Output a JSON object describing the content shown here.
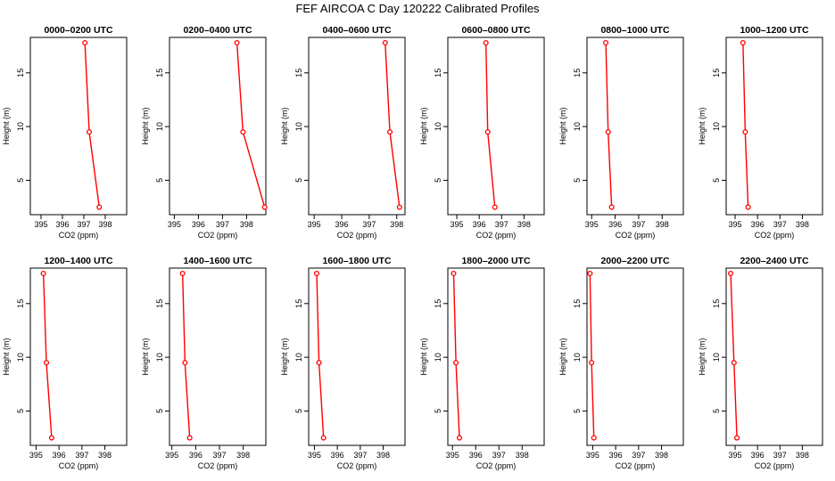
{
  "figure": {
    "title": "FEF AIRCOA C  Day 120222  Calibrated Profiles"
  },
  "colors": {
    "series": "#ff0000",
    "axis": "#000000",
    "background": "#ffffff"
  },
  "chart_data": [
    {
      "type": "line",
      "title": "0000–0200 UTC",
      "xlabel": "CO2 (ppm)",
      "ylabel": "Height (m)",
      "xlim": [
        394.5,
        399
      ],
      "ylim": [
        1.8,
        18.3
      ],
      "xticks": [
        395,
        396,
        397,
        398
      ],
      "yticks": [
        5,
        10,
        15
      ],
      "grid": false,
      "x": [
        397.72,
        397.25,
        397.05
      ],
      "y": [
        2.5,
        9.5,
        17.8
      ]
    },
    {
      "type": "line",
      "title": "0200–0400 UTC",
      "xlabel": "CO2 (ppm)",
      "ylabel": "Height (m)",
      "xlim": [
        394.8,
        398.8
      ],
      "ylim": [
        1.8,
        18.3
      ],
      "xticks": [
        395,
        396,
        397,
        398
      ],
      "yticks": [
        5,
        10,
        15
      ],
      "grid": false,
      "x": [
        398.75,
        397.85,
        397.6
      ],
      "y": [
        2.5,
        9.5,
        17.8
      ]
    },
    {
      "type": "line",
      "title": "0400–0600 UTC",
      "xlabel": "CO2 (ppm)",
      "ylabel": "Height (m)",
      "xlim": [
        394.8,
        398.3
      ],
      "ylim": [
        1.8,
        18.3
      ],
      "xticks": [
        395,
        396,
        397,
        398
      ],
      "yticks": [
        5,
        10,
        15
      ],
      "grid": false,
      "x": [
        398.1,
        397.75,
        397.58
      ],
      "y": [
        2.5,
        9.5,
        17.8
      ]
    },
    {
      "type": "line",
      "title": "0600–0800 UTC",
      "xlabel": "CO2 (ppm)",
      "ylabel": "Height (m)",
      "xlim": [
        394.6,
        398.9
      ],
      "ylim": [
        1.8,
        18.3
      ],
      "xticks": [
        395,
        396,
        397,
        398
      ],
      "yticks": [
        5,
        10,
        15
      ],
      "grid": false,
      "x": [
        396.7,
        396.38,
        396.3
      ],
      "y": [
        2.5,
        9.5,
        17.8
      ]
    },
    {
      "type": "line",
      "title": "0800–1000 UTC",
      "xlabel": "CO2 (ppm)",
      "ylabel": "Height (m)",
      "xlim": [
        394.8,
        398.9
      ],
      "ylim": [
        1.8,
        18.3
      ],
      "xticks": [
        395,
        396,
        397,
        398
      ],
      "yticks": [
        5,
        10,
        15
      ],
      "grid": false,
      "x": [
        395.85,
        395.7,
        395.6
      ],
      "y": [
        2.5,
        9.5,
        17.8
      ]
    },
    {
      "type": "line",
      "title": "1000–1200 UTC",
      "xlabel": "CO2 (ppm)",
      "ylabel": "Height (m)",
      "xlim": [
        394.6,
        398.9
      ],
      "ylim": [
        1.8,
        18.3
      ],
      "xticks": [
        395,
        396,
        397,
        398
      ],
      "yticks": [
        5,
        10,
        15
      ],
      "grid": false,
      "x": [
        395.58,
        395.45,
        395.35
      ],
      "y": [
        2.5,
        9.5,
        17.8
      ]
    },
    {
      "type": "line",
      "title": "1200–1400 UTC",
      "xlabel": "CO2 (ppm)",
      "ylabel": "Height (m)",
      "xlim": [
        394.75,
        398.95
      ],
      "ylim": [
        1.8,
        18.3
      ],
      "xticks": [
        395,
        396,
        397,
        398
      ],
      "yticks": [
        5,
        10,
        15
      ],
      "grid": false,
      "x": [
        395.68,
        395.45,
        395.32
      ],
      "y": [
        2.5,
        9.5,
        17.8
      ]
    },
    {
      "type": "line",
      "title": "1400–1600 UTC",
      "xlabel": "CO2 (ppm)",
      "ylabel": "Height (m)",
      "xlim": [
        394.9,
        398.95
      ],
      "ylim": [
        1.8,
        18.3
      ],
      "xticks": [
        395,
        396,
        397,
        398
      ],
      "yticks": [
        5,
        10,
        15
      ],
      "grid": false,
      "x": [
        395.75,
        395.55,
        395.45
      ],
      "y": [
        2.5,
        9.5,
        17.8
      ]
    },
    {
      "type": "line",
      "title": "1600–1800 UTC",
      "xlabel": "CO2 (ppm)",
      "ylabel": "Height (m)",
      "xlim": [
        394.75,
        398.95
      ],
      "ylim": [
        1.8,
        18.3
      ],
      "xticks": [
        395,
        396,
        397,
        398
      ],
      "yticks": [
        5,
        10,
        15
      ],
      "grid": false,
      "x": [
        395.4,
        395.2,
        395.1
      ],
      "y": [
        2.5,
        9.5,
        17.8
      ]
    },
    {
      "type": "line",
      "title": "1800–2000 UTC",
      "xlabel": "CO2 (ppm)",
      "ylabel": "Height (m)",
      "xlim": [
        394.8,
        398.95
      ],
      "ylim": [
        1.8,
        18.3
      ],
      "xticks": [
        395,
        396,
        397,
        398
      ],
      "yticks": [
        5,
        10,
        15
      ],
      "grid": false,
      "x": [
        395.3,
        395.15,
        395.05
      ],
      "y": [
        2.5,
        9.5,
        17.8
      ]
    },
    {
      "type": "line",
      "title": "2000–2200 UTC",
      "xlabel": "CO2 (ppm)",
      "ylabel": "Height (m)",
      "xlim": [
        394.75,
        398.95
      ],
      "ylim": [
        1.8,
        18.3
      ],
      "xticks": [
        395,
        396,
        397,
        398
      ],
      "yticks": [
        5,
        10,
        15
      ],
      "grid": false,
      "x": [
        395.05,
        394.95,
        394.88
      ],
      "y": [
        2.5,
        9.5,
        17.8
      ]
    },
    {
      "type": "line",
      "title": "2200–2400 UTC",
      "xlabel": "CO2 (ppm)",
      "ylabel": "Height (m)",
      "xlim": [
        394.6,
        398.9
      ],
      "ylim": [
        1.8,
        18.3
      ],
      "xticks": [
        395,
        396,
        397,
        398
      ],
      "yticks": [
        5,
        10,
        15
      ],
      "grid": false,
      "x": [
        395.08,
        394.95,
        394.8
      ],
      "y": [
        2.5,
        9.5,
        17.8
      ]
    }
  ]
}
